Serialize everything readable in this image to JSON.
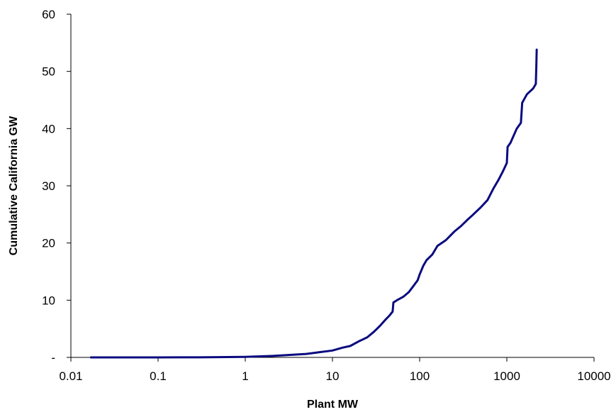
{
  "chart_data": {
    "type": "line",
    "xlabel": "Plant MW",
    "ylabel": "Cumulative California GW",
    "x_scale": "log",
    "xlim": [
      0.01,
      10000
    ],
    "ylim": [
      0,
      60
    ],
    "x_ticks": [
      0.01,
      0.1,
      1,
      10,
      100,
      1000,
      10000
    ],
    "x_tick_labels": [
      "0.01",
      "0.1",
      "1",
      "10",
      "100",
      "1000",
      "10000"
    ],
    "y_ticks": [
      0,
      10,
      20,
      30,
      40,
      50,
      60
    ],
    "y_tick_labels": [
      "-",
      "10",
      "20",
      "30",
      "40",
      "50",
      "60"
    ],
    "grid": false,
    "legend": "none",
    "series": [
      {
        "color": "#0a0a80",
        "points": [
          [
            0.017,
            0.0
          ],
          [
            0.05,
            0.0
          ],
          [
            0.1,
            0.0
          ],
          [
            0.3,
            0.02
          ],
          [
            0.5,
            0.04
          ],
          [
            1.0,
            0.1
          ],
          [
            2.0,
            0.25
          ],
          [
            3.0,
            0.4
          ],
          [
            5.0,
            0.6
          ],
          [
            7.0,
            0.9
          ],
          [
            10.0,
            1.2
          ],
          [
            13.0,
            1.7
          ],
          [
            16.0,
            2.0
          ],
          [
            20.0,
            2.8
          ],
          [
            25.0,
            3.5
          ],
          [
            30.0,
            4.5
          ],
          [
            35.0,
            5.5
          ],
          [
            40.0,
            6.5
          ],
          [
            45.0,
            7.3
          ],
          [
            49.0,
            8.0
          ],
          [
            50.0,
            9.6
          ],
          [
            55.0,
            10.0
          ],
          [
            65.0,
            10.6
          ],
          [
            75.0,
            11.4
          ],
          [
            85.0,
            12.5
          ],
          [
            95.0,
            13.5
          ],
          [
            100.0,
            14.5
          ],
          [
            110.0,
            16.0
          ],
          [
            120.0,
            17.0
          ],
          [
            140.0,
            18.0
          ],
          [
            160.0,
            19.5
          ],
          [
            200.0,
            20.5
          ],
          [
            250.0,
            22.0
          ],
          [
            300.0,
            23.0
          ],
          [
            350.0,
            24.0
          ],
          [
            400.0,
            24.8
          ],
          [
            500.0,
            26.2
          ],
          [
            600.0,
            27.5
          ],
          [
            700.0,
            29.5
          ],
          [
            800.0,
            31.0
          ],
          [
            900.0,
            32.5
          ],
          [
            1000.0,
            34.0
          ],
          [
            1020.0,
            36.8
          ],
          [
            1100.0,
            37.5
          ],
          [
            1300.0,
            40.0
          ],
          [
            1450.0,
            41.0
          ],
          [
            1500.0,
            44.5
          ],
          [
            1700.0,
            46.0
          ],
          [
            2000.0,
            47.0
          ],
          [
            2150.0,
            47.8
          ],
          [
            2180.0,
            51.0
          ],
          [
            2200.0,
            53.8
          ]
        ]
      }
    ]
  }
}
